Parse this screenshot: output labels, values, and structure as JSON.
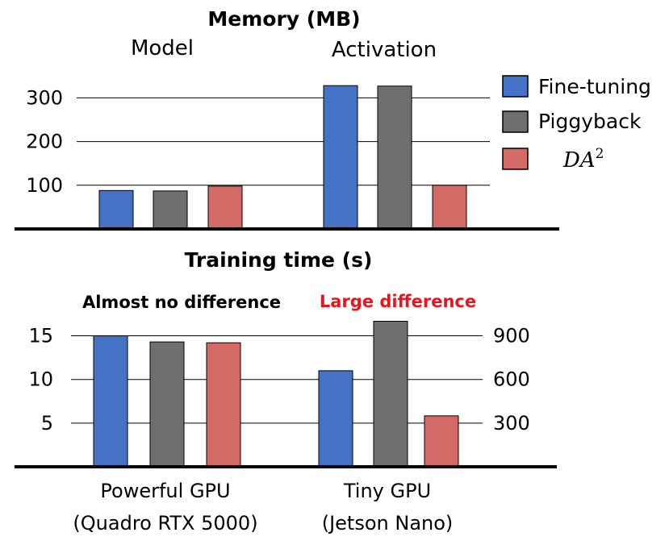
{
  "colors": {
    "fine_tuning": "#4472c4",
    "piggyback": "#6f6f6f",
    "da2": "#d46a66",
    "highlight": "#e8151b"
  },
  "chart_data": [
    {
      "type": "bar",
      "title": "Memory  (MB)",
      "groups": [
        "Model",
        "Activation"
      ],
      "ylim": [
        0,
        350
      ],
      "yticks": [
        100,
        200,
        300
      ],
      "grid": true,
      "series": [
        {
          "name": "Fine-tuning",
          "color_key": "fine_tuning",
          "values": [
            88,
            328
          ]
        },
        {
          "name": "Piggyback",
          "color_key": "piggyback",
          "values": [
            87,
            327
          ]
        },
        {
          "name": "DA",
          "superscript": "2",
          "color_key": "da2",
          "values": [
            98,
            100
          ]
        }
      ],
      "legend": "right"
    },
    {
      "type": "bar",
      "title": "Training time (s)",
      "annotations": [
        "Almost no difference",
        "Large difference"
      ],
      "categories": [
        "Powerful GPU",
        "Tiny GPU"
      ],
      "category_details": [
        "(Quadro RTX 5000)",
        "(Jetson Nano)"
      ],
      "left_axis": {
        "ylim": [
          0,
          18
        ],
        "yticks": [
          5,
          10,
          15
        ]
      },
      "right_axis": {
        "ylim": [
          0,
          1080
        ],
        "yticks": [
          300,
          600,
          900
        ]
      },
      "grid": true,
      "series": [
        {
          "name": "Fine-tuning",
          "color_key": "fine_tuning",
          "values": [
            15.0,
            660
          ]
        },
        {
          "name": "Piggyback",
          "color_key": "piggyback",
          "values": [
            14.3,
            1000
          ]
        },
        {
          "name": "DA",
          "superscript": "2",
          "color_key": "da2",
          "values": [
            14.2,
            350
          ]
        }
      ]
    }
  ]
}
